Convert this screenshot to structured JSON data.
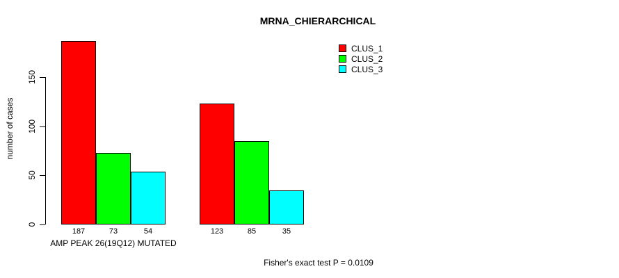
{
  "chart_data": {
    "type": "bar",
    "title": "MRNA_CHIERARCHICAL",
    "xlabel": "",
    "ylabel": "number of cases",
    "ylim": [
      0,
      187
    ],
    "yticks": [
      0,
      50,
      100,
      150
    ],
    "grid": false,
    "legend_position": "top-right",
    "categories": [
      "AMP PEAK 26(19Q12) MUTATED",
      ""
    ],
    "series": [
      {
        "name": "CLUS_1",
        "color": "#ff0000",
        "values": [
          187,
          123
        ]
      },
      {
        "name": "CLUS_2",
        "color": "#00ff00",
        "values": [
          73,
          85
        ]
      },
      {
        "name": "CLUS_3",
        "color": "#00ffff",
        "values": [
          54,
          35
        ]
      }
    ],
    "bar_labels": [
      [
        187,
        73,
        54
      ],
      [
        123,
        85,
        35
      ]
    ],
    "annotation": "Fisher's exact test P = 0.0109"
  },
  "colors": {
    "axis": "#000000",
    "background": "#ffffff"
  }
}
